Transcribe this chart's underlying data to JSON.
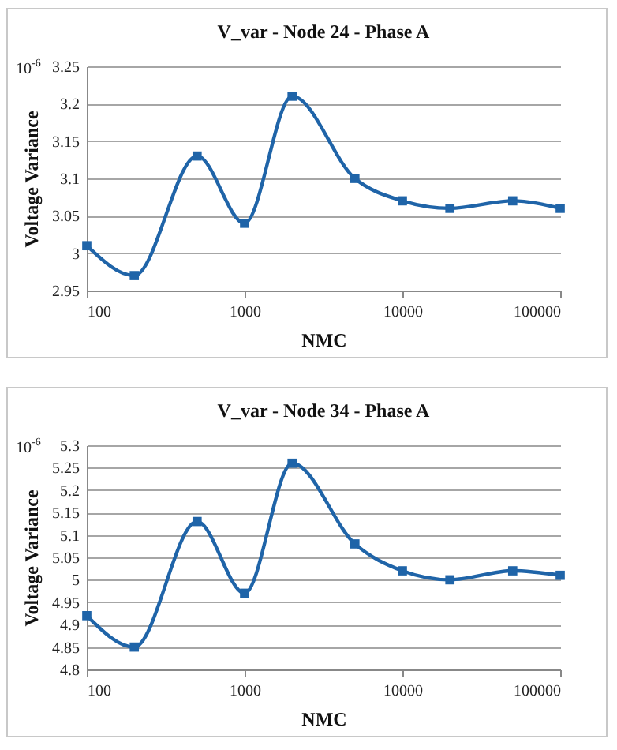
{
  "chart_data": [
    {
      "type": "line",
      "title": "V_var - Node 24 - Phase A",
      "xlabel": "NMC",
      "ylabel": "Voltage Variance",
      "annotations": [
        "10$^{-6}$"
      ],
      "x": [
        100,
        200,
        500,
        1000,
        2000,
        5000,
        10000,
        20000,
        50000,
        100000
      ],
      "series": [
        {
          "color": "#1f64a8",
          "values": [
            3.01,
            2.97,
            3.13,
            3.04,
            3.21,
            3.1,
            3.07,
            3.06,
            3.07,
            3.06
          ]
        }
      ],
      "xlim": [
        100,
        100000
      ],
      "xticks": [
        100,
        1000,
        10000,
        100000
      ],
      "ylim": [
        2.95,
        3.25
      ],
      "yticks": [
        2.95,
        3,
        3.05,
        3.1,
        3.15,
        3.2,
        3.25
      ],
      "log": "x",
      "grid": "y",
      "legend": false,
      "marker": "square",
      "line_style": "solid"
    },
    {
      "type": "line",
      "title": "V_var - Node 34 - Phase A",
      "xlabel": "NMC",
      "ylabel": "Voltage Variance",
      "annotations": [
        "10$^{-6}$"
      ],
      "x": [
        100,
        200,
        500,
        1000,
        2000,
        5000,
        10000,
        20000,
        50000,
        100000
      ],
      "series": [
        {
          "color": "#1f64a8",
          "values": [
            4.92,
            4.85,
            5.13,
            4.97,
            5.26,
            5.08,
            5.02,
            5.0,
            5.02,
            5.01
          ]
        }
      ],
      "xlim": [
        100,
        100000
      ],
      "xticks": [
        100,
        1000,
        10000,
        100000
      ],
      "ylim": [
        4.8,
        5.3
      ],
      "yticks": [
        4.8,
        4.85,
        4.9,
        4.95,
        5,
        5.05,
        5.1,
        5.15,
        5.2,
        5.25,
        5.3
      ],
      "log": "x",
      "grid": "y",
      "legend": false,
      "marker": "square",
      "line_style": "solid"
    }
  ]
}
